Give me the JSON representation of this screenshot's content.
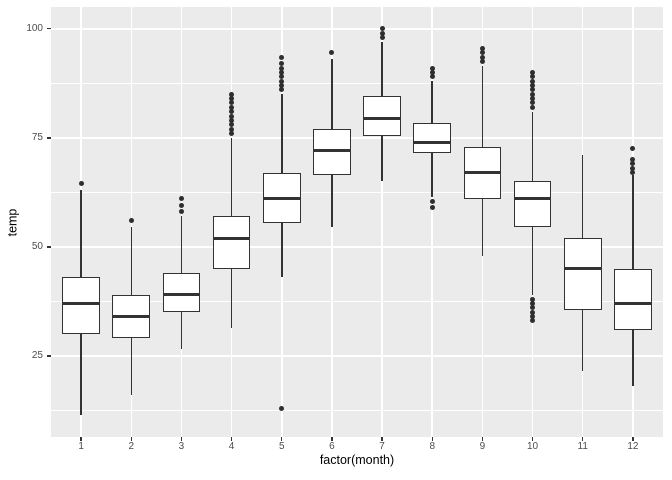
{
  "chart_data": {
    "type": "boxplot",
    "title": "",
    "xlabel": "factor(month)",
    "ylabel": "temp",
    "categories": [
      "1",
      "2",
      "3",
      "4",
      "5",
      "6",
      "7",
      "8",
      "9",
      "10",
      "11",
      "12"
    ],
    "ylim": [
      6.4,
      105.0
    ],
    "y_ticks": [
      25,
      50,
      75,
      100
    ],
    "y_minor_gridlines": [
      12.5,
      37.5,
      62.5,
      87.5
    ],
    "grid": true,
    "legend": false,
    "colors": {
      "panel_bg": "#EBEBEB",
      "gridline": "#FFFFFF",
      "box_fill": "#FFFFFF",
      "box_stroke": "#333333",
      "outlier": "#2e2e2e",
      "axis_text": "#4d4d4d",
      "axis_title": "#000000"
    },
    "series": [
      {
        "category": "1",
        "whisker_low": 11.5,
        "q1": 30,
        "median": 37,
        "q3": 43,
        "whisker_high": 63,
        "outliers": [
          64.5
        ]
      },
      {
        "category": "2",
        "whisker_low": 16,
        "q1": 29,
        "median": 34,
        "q3": 39,
        "whisker_high": 54.5,
        "outliers": [
          56
        ]
      },
      {
        "category": "3",
        "whisker_low": 26.5,
        "q1": 35,
        "median": 39,
        "q3": 44,
        "whisker_high": 57,
        "outliers": [
          58,
          59.5,
          61
        ]
      },
      {
        "category": "4",
        "whisker_low": 31.5,
        "q1": 45,
        "median": 52,
        "q3": 57,
        "whisker_high": 75,
        "outliers": [
          76,
          77,
          78,
          79,
          80,
          81,
          82,
          83,
          84,
          85
        ]
      },
      {
        "category": "5",
        "whisker_low": 43,
        "q1": 55.5,
        "median": 61,
        "q3": 67,
        "whisker_high": 85,
        "outliers": [
          13,
          86,
          87,
          88,
          89,
          90,
          91,
          92,
          93.5
        ]
      },
      {
        "category": "6",
        "whisker_low": 54.5,
        "q1": 66.5,
        "median": 72,
        "q3": 77,
        "whisker_high": 93,
        "outliers": [
          94.5
        ]
      },
      {
        "category": "7",
        "whisker_low": 65,
        "q1": 75.5,
        "median": 79.5,
        "q3": 84.5,
        "whisker_high": 97,
        "outliers": [
          98,
          99,
          100
        ]
      },
      {
        "category": "8",
        "whisker_low": 61.5,
        "q1": 71.5,
        "median": 74,
        "q3": 78.5,
        "whisker_high": 88,
        "outliers": [
          59,
          60.5,
          89,
          90,
          91
        ]
      },
      {
        "category": "9",
        "whisker_low": 48,
        "q1": 61,
        "median": 67,
        "q3": 73,
        "whisker_high": 91.5,
        "outliers": [
          92.5,
          93.5,
          94.5,
          95.5
        ]
      },
      {
        "category": "10",
        "whisker_low": 39,
        "q1": 54.5,
        "median": 61,
        "q3": 65,
        "whisker_high": 81,
        "outliers": [
          33,
          34,
          35,
          36,
          37,
          38,
          82,
          83,
          84,
          85,
          86,
          87,
          88,
          89,
          90
        ]
      },
      {
        "category": "11",
        "whisker_low": 21.5,
        "q1": 35.5,
        "median": 45,
        "q3": 52,
        "whisker_high": 71,
        "outliers": []
      },
      {
        "category": "12",
        "whisker_low": 18,
        "q1": 31,
        "median": 37,
        "q3": 45,
        "whisker_high": 66.5,
        "outliers": [
          67,
          68,
          69,
          70,
          72.5
        ]
      }
    ]
  }
}
